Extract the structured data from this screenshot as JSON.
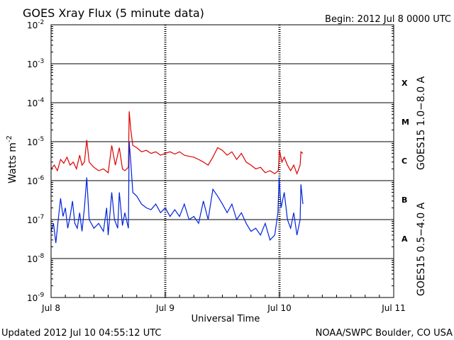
{
  "chart_data": {
    "type": "line",
    "title": "GOES Xray Flux (5 minute data)",
    "begin": "Begin:  2012 Jul 8 0000 UTC",
    "xlabel": "Universal Time",
    "ylabel": "Watts m",
    "ylabel_sup": "-2",
    "updated": "Updated 2012 Jul 10 04:55:12 UTC",
    "credit": "NOAA/SWPC Boulder, CO USA",
    "y_scale": "log",
    "ylim": [
      1e-09,
      0.01
    ],
    "xlim": [
      "2012-07-08",
      "2012-07-11"
    ],
    "x_ticks": [
      {
        "date": "2012-07-08",
        "label": "Jul 8"
      },
      {
        "date": "2012-07-09",
        "label": "Jul 9"
      },
      {
        "date": "2012-07-10",
        "label": "Jul 10"
      },
      {
        "date": "2012-07-11",
        "label": "Jul 11"
      }
    ],
    "y_ticks": [
      {
        "base": "10",
        "exp": "-9",
        "value": 1e-09
      },
      {
        "base": "10",
        "exp": "-8",
        "value": 1e-08
      },
      {
        "base": "10",
        "exp": "-7",
        "value": 1e-07
      },
      {
        "base": "10",
        "exp": "-6",
        "value": 1e-06
      },
      {
        "base": "10",
        "exp": "-5",
        "value": 1e-05
      },
      {
        "base": "10",
        "exp": "-4",
        "value": 0.0001
      },
      {
        "base": "10",
        "exp": "-3",
        "value": 0.001
      },
      {
        "base": "10",
        "exp": "-2",
        "value": 0.01
      }
    ],
    "flare_classes": [
      {
        "label": "A",
        "value": 3.2e-08
      },
      {
        "label": "B",
        "value": 3.2e-07
      },
      {
        "label": "C",
        "value": 3.2e-06
      },
      {
        "label": "M",
        "value": 3.2e-05
      },
      {
        "label": "X",
        "value": 0.00032
      }
    ],
    "grid_lines_y": [
      1e-08,
      1e-07,
      1e-06,
      1e-05,
      0.0001,
      0.001
    ],
    "series": [
      {
        "name": "GOES15 1.0−8.0 A",
        "color": "#dd0000",
        "points": [
          [
            "2012-07-08T00:00",
            2e-06
          ],
          [
            "2012-07-08T00:40",
            2.5e-06
          ],
          [
            "2012-07-08T01:20",
            1.8e-06
          ],
          [
            "2012-07-08T02:00",
            3.5e-06
          ],
          [
            "2012-07-08T02:40",
            2.8e-06
          ],
          [
            "2012-07-08T03:20",
            4e-06
          ],
          [
            "2012-07-08T04:00",
            2.5e-06
          ],
          [
            "2012-07-08T04:40",
            3e-06
          ],
          [
            "2012-07-08T05:20",
            2e-06
          ],
          [
            "2012-07-08T06:00",
            4.5e-06
          ],
          [
            "2012-07-08T06:30",
            2.5e-06
          ],
          [
            "2012-07-08T07:00",
            3e-06
          ],
          [
            "2012-07-08T07:30",
            1.1e-05
          ],
          [
            "2012-07-08T08:00",
            3e-06
          ],
          [
            "2012-07-08T09:00",
            2.2e-06
          ],
          [
            "2012-07-08T10:00",
            1.8e-06
          ],
          [
            "2012-07-08T11:00",
            2e-06
          ],
          [
            "2012-07-08T12:00",
            1.6e-06
          ],
          [
            "2012-07-08T12:45",
            8e-06
          ],
          [
            "2012-07-08T13:30",
            2.5e-06
          ],
          [
            "2012-07-08T14:20",
            7e-06
          ],
          [
            "2012-07-08T15:00",
            2e-06
          ],
          [
            "2012-07-08T15:30",
            1.8e-06
          ],
          [
            "2012-07-08T16:15",
            2.2e-06
          ],
          [
            "2012-07-08T16:25",
            6e-05
          ],
          [
            "2012-07-08T16:45",
            2e-05
          ],
          [
            "2012-07-08T17:10",
            8e-06
          ],
          [
            "2012-07-08T18:00",
            7e-06
          ],
          [
            "2012-07-08T19:00",
            5.5e-06
          ],
          [
            "2012-07-08T20:00",
            6e-06
          ],
          [
            "2012-07-08T21:00",
            5e-06
          ],
          [
            "2012-07-08T22:00",
            5.5e-06
          ],
          [
            "2012-07-08T23:00",
            4.5e-06
          ],
          [
            "2012-07-09T00:00",
            5e-06
          ],
          [
            "2012-07-09T01:00",
            5.5e-06
          ],
          [
            "2012-07-09T02:00",
            4.8e-06
          ],
          [
            "2012-07-09T03:00",
            5.5e-06
          ],
          [
            "2012-07-09T04:00",
            4.5e-06
          ],
          [
            "2012-07-09T05:00",
            4.2e-06
          ],
          [
            "2012-07-09T06:00",
            4e-06
          ],
          [
            "2012-07-09T07:00",
            3.5e-06
          ],
          [
            "2012-07-09T08:00",
            3e-06
          ],
          [
            "2012-07-09T09:00",
            2.5e-06
          ],
          [
            "2012-07-09T10:00",
            4e-06
          ],
          [
            "2012-07-09T11:00",
            7e-06
          ],
          [
            "2012-07-09T12:00",
            6e-06
          ],
          [
            "2012-07-09T13:00",
            4.5e-06
          ],
          [
            "2012-07-09T14:00",
            5.5e-06
          ],
          [
            "2012-07-09T15:00",
            3.5e-06
          ],
          [
            "2012-07-09T16:00",
            5e-06
          ],
          [
            "2012-07-09T17:00",
            3e-06
          ],
          [
            "2012-07-09T18:00",
            2.5e-06
          ],
          [
            "2012-07-09T19:00",
            2e-06
          ],
          [
            "2012-07-09T20:00",
            2.2e-06
          ],
          [
            "2012-07-09T21:00",
            1.6e-06
          ],
          [
            "2012-07-09T22:00",
            1.8e-06
          ],
          [
            "2012-07-09T23:00",
            1.5e-06
          ],
          [
            "2012-07-09T23:45",
            1.8e-06
          ],
          [
            "2012-07-10T00:00",
            6e-06
          ],
          [
            "2012-07-10T00:30",
            3e-06
          ],
          [
            "2012-07-10T01:00",
            4e-06
          ],
          [
            "2012-07-10T01:40",
            2.5e-06
          ],
          [
            "2012-07-10T02:20",
            1.8e-06
          ],
          [
            "2012-07-10T03:00",
            2.5e-06
          ],
          [
            "2012-07-10T03:40",
            1.5e-06
          ],
          [
            "2012-07-10T04:20",
            2.5e-06
          ],
          [
            "2012-07-10T04:30",
            5.5e-06
          ],
          [
            "2012-07-10T04:55",
            5e-06
          ]
        ]
      },
      {
        "name": "GOES15 0.5−4.0 A",
        "color": "#0022dd",
        "points": [
          [
            "2012-07-08T00:00",
            5e-08
          ],
          [
            "2012-07-08T00:30",
            8e-08
          ],
          [
            "2012-07-08T01:00",
            2.5e-08
          ],
          [
            "2012-07-08T01:30",
            1e-07
          ],
          [
            "2012-07-08T02:00",
            3.5e-07
          ],
          [
            "2012-07-08T02:30",
            1.2e-07
          ],
          [
            "2012-07-08T03:00",
            2e-07
          ],
          [
            "2012-07-08T03:30",
            6e-08
          ],
          [
            "2012-07-08T04:00",
            1.2e-07
          ],
          [
            "2012-07-08T04:30",
            3e-07
          ],
          [
            "2012-07-08T05:00",
            8e-08
          ],
          [
            "2012-07-08T05:30",
            6e-08
          ],
          [
            "2012-07-08T06:00",
            1.5e-07
          ],
          [
            "2012-07-08T06:30",
            5e-08
          ],
          [
            "2012-07-08T07:00",
            2e-07
          ],
          [
            "2012-07-08T07:30",
            1.2e-06
          ],
          [
            "2012-07-08T08:00",
            1e-07
          ],
          [
            "2012-07-08T09:00",
            6e-08
          ],
          [
            "2012-07-08T10:00",
            8e-08
          ],
          [
            "2012-07-08T11:00",
            5e-08
          ],
          [
            "2012-07-08T11:40",
            2e-07
          ],
          [
            "2012-07-08T12:00",
            4e-08
          ],
          [
            "2012-07-08T12:45",
            5e-07
          ],
          [
            "2012-07-08T13:20",
            1e-07
          ],
          [
            "2012-07-08T14:00",
            6e-08
          ],
          [
            "2012-07-08T14:20",
            5e-07
          ],
          [
            "2012-07-08T15:00",
            7e-08
          ],
          [
            "2012-07-08T15:30",
            1.5e-07
          ],
          [
            "2012-07-08T16:15",
            6e-08
          ],
          [
            "2012-07-08T16:25",
            1e-05
          ],
          [
            "2012-07-08T16:45",
            3e-06
          ],
          [
            "2012-07-08T17:10",
            5e-07
          ],
          [
            "2012-07-08T18:00",
            4e-07
          ],
          [
            "2012-07-08T19:00",
            2.5e-07
          ],
          [
            "2012-07-08T20:00",
            2e-07
          ],
          [
            "2012-07-08T21:00",
            1.8e-07
          ],
          [
            "2012-07-08T22:00",
            2.5e-07
          ],
          [
            "2012-07-08T23:00",
            1.5e-07
          ],
          [
            "2012-07-09T00:00",
            2e-07
          ],
          [
            "2012-07-09T01:00",
            1.2e-07
          ],
          [
            "2012-07-09T02:00",
            1.8e-07
          ],
          [
            "2012-07-09T03:00",
            1.2e-07
          ],
          [
            "2012-07-09T04:00",
            2.5e-07
          ],
          [
            "2012-07-09T05:00",
            1e-07
          ],
          [
            "2012-07-09T06:00",
            1.2e-07
          ],
          [
            "2012-07-09T07:00",
            8e-08
          ],
          [
            "2012-07-09T08:00",
            3e-07
          ],
          [
            "2012-07-09T09:00",
            1e-07
          ],
          [
            "2012-07-09T10:00",
            6e-07
          ],
          [
            "2012-07-09T11:00",
            4e-07
          ],
          [
            "2012-07-09T12:00",
            2.5e-07
          ],
          [
            "2012-07-09T13:00",
            1.5e-07
          ],
          [
            "2012-07-09T14:00",
            2.5e-07
          ],
          [
            "2012-07-09T15:00",
            1e-07
          ],
          [
            "2012-07-09T16:00",
            1.5e-07
          ],
          [
            "2012-07-09T17:00",
            8e-08
          ],
          [
            "2012-07-09T18:00",
            5e-08
          ],
          [
            "2012-07-09T19:00",
            6e-08
          ],
          [
            "2012-07-09T20:00",
            4e-08
          ],
          [
            "2012-07-09T21:00",
            8e-08
          ],
          [
            "2012-07-09T22:00",
            3e-08
          ],
          [
            "2012-07-09T23:00",
            4e-08
          ],
          [
            "2012-07-09T23:40",
            1.5e-07
          ],
          [
            "2012-07-09T23:55",
            1.2e-06
          ],
          [
            "2012-07-10T00:20",
            2e-07
          ],
          [
            "2012-07-10T01:00",
            5e-07
          ],
          [
            "2012-07-10T01:40",
            1e-07
          ],
          [
            "2012-07-10T02:20",
            6e-08
          ],
          [
            "2012-07-10T03:00",
            1.5e-07
          ],
          [
            "2012-07-10T03:40",
            4e-08
          ],
          [
            "2012-07-10T04:20",
            1e-07
          ],
          [
            "2012-07-10T04:30",
            8e-07
          ],
          [
            "2012-07-10T04:55",
            2.5e-07
          ]
        ]
      }
    ]
  }
}
